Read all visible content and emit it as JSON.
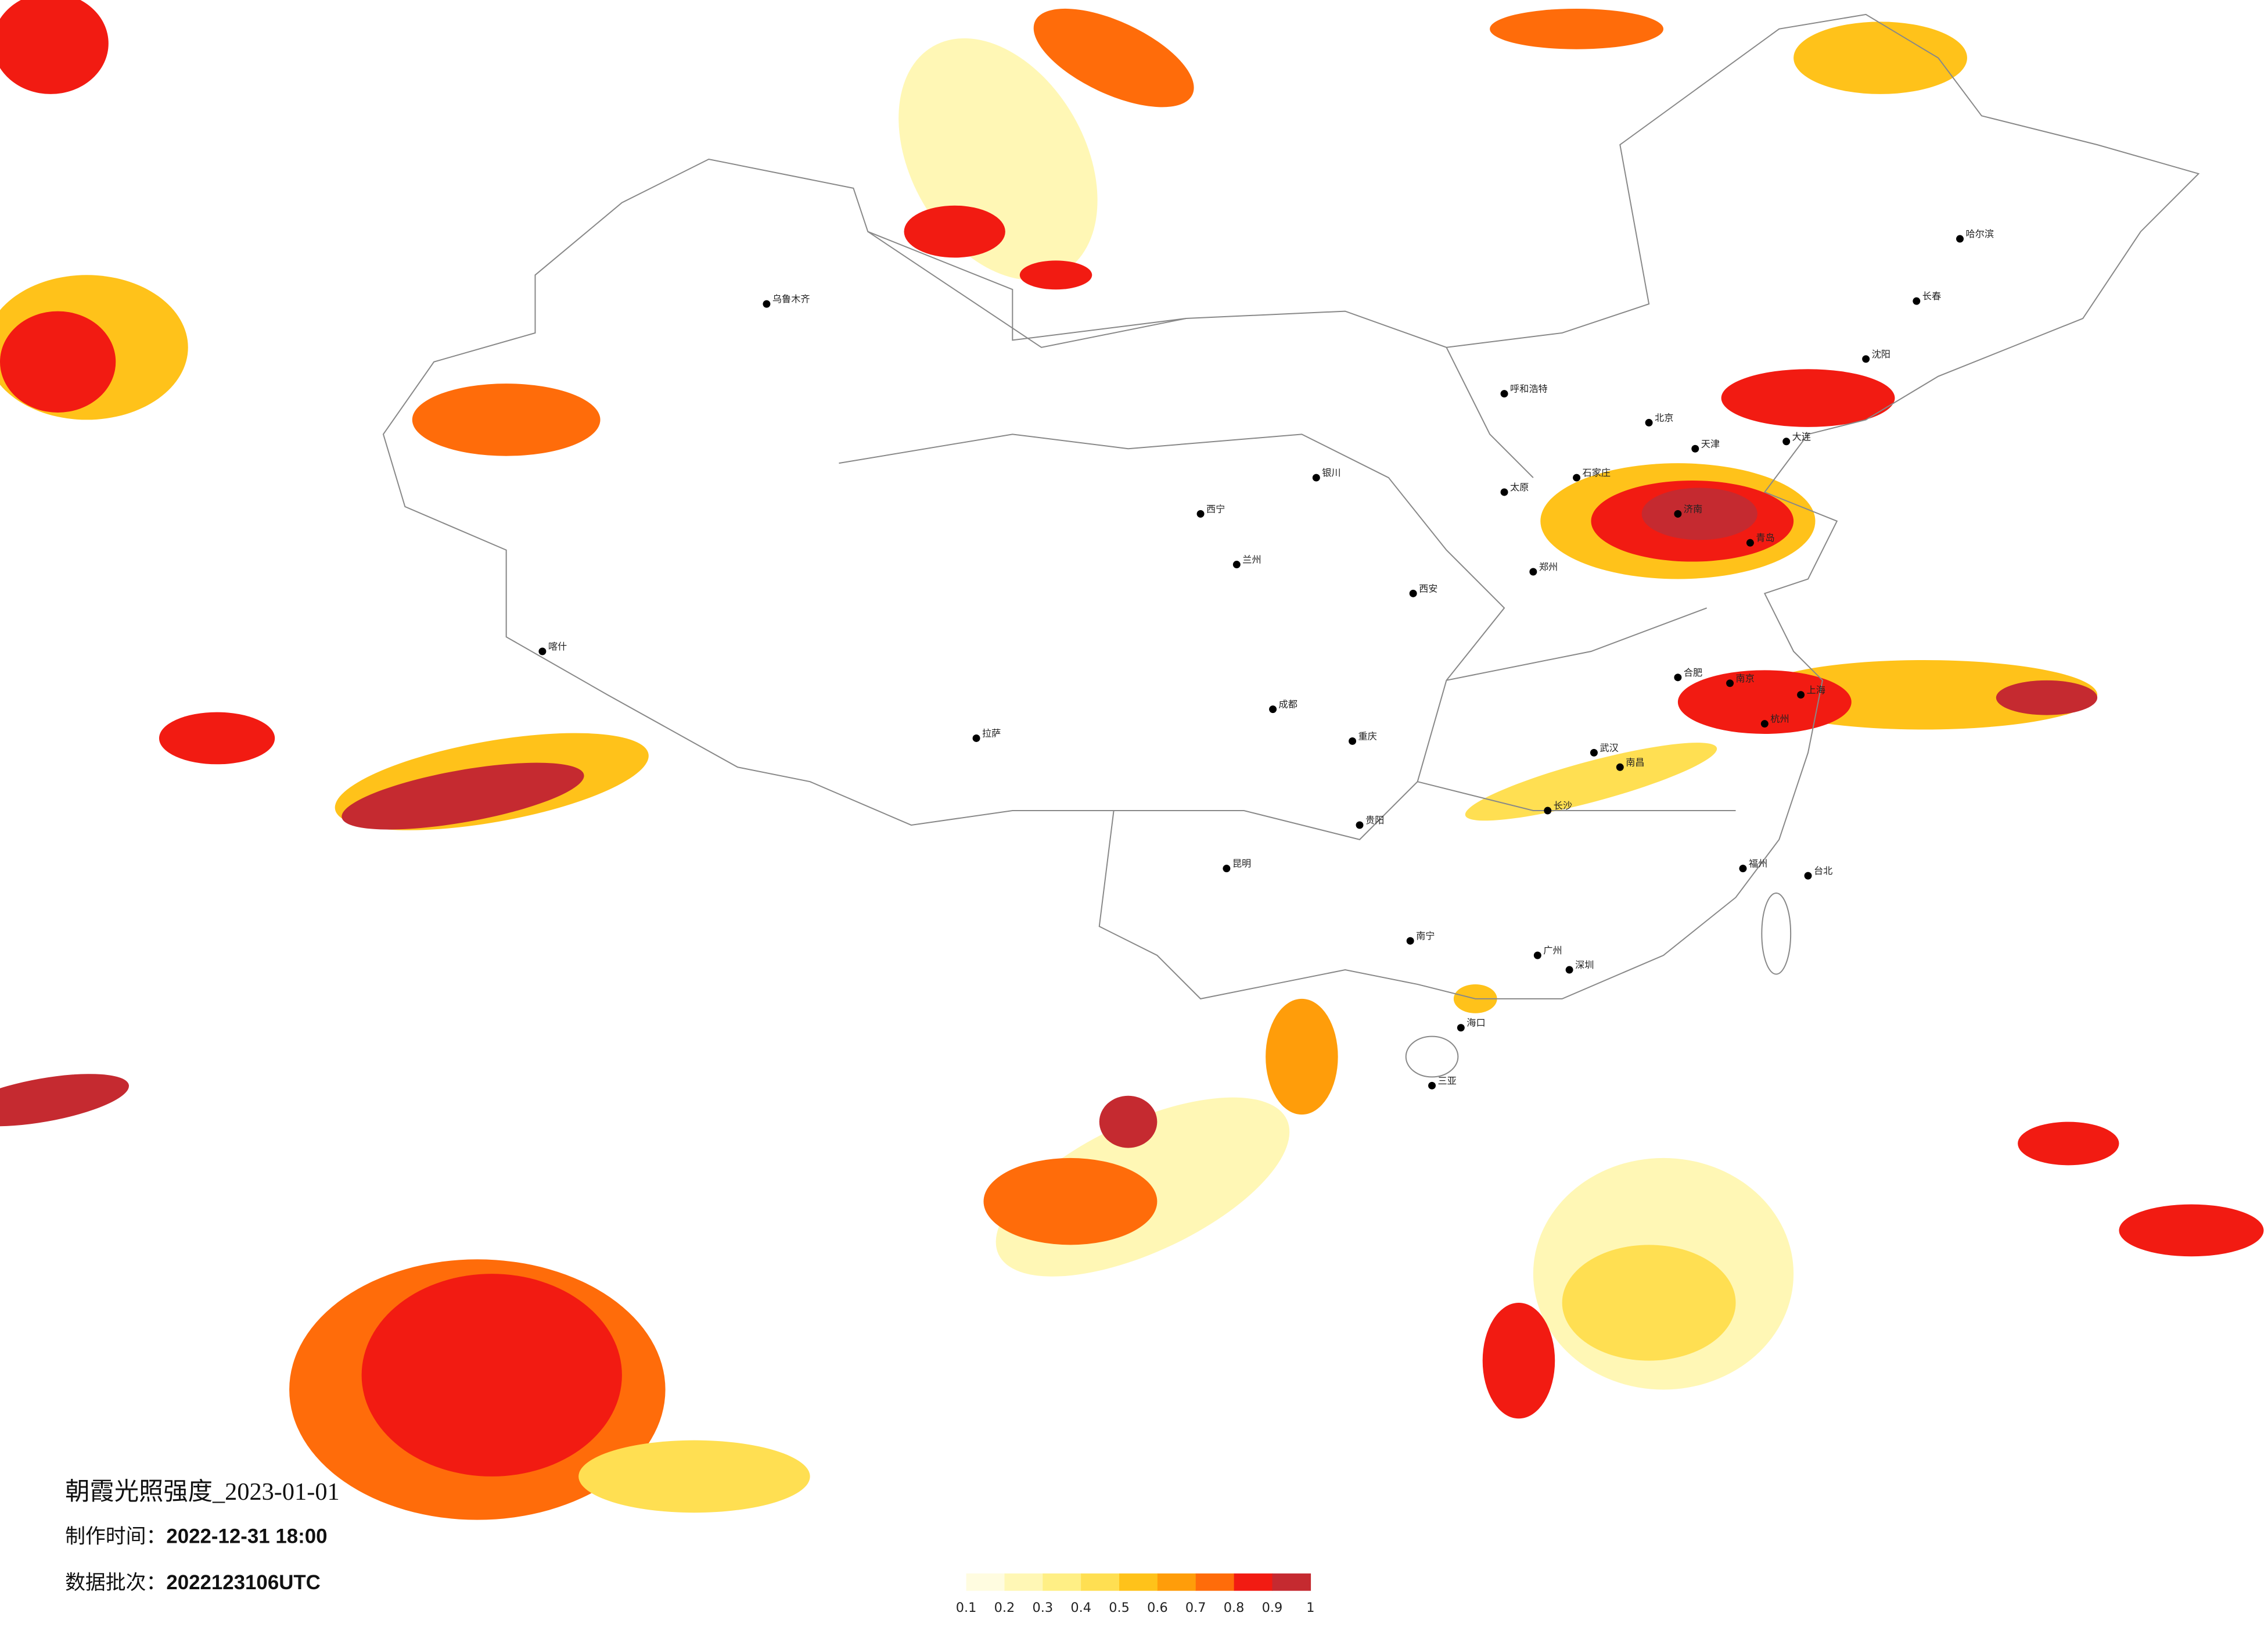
{
  "title": "朝霞光照强度_2023-01-01",
  "produced": {
    "label": "制作时间：",
    "value": "2022-12-31 18:00"
  },
  "batch": {
    "label": "数据批次：",
    "value": "2022123106UTC"
  },
  "legend": {
    "colors": [
      "#fffce0",
      "#fff7b5",
      "#ffef85",
      "#ffdf52",
      "#ffc21a",
      "#ff9d0a",
      "#ff6c0a",
      "#f21b12",
      "#c52a30"
    ],
    "ticks": [
      0.1,
      0.2,
      0.3,
      0.4,
      0.5,
      0.6,
      0.7,
      0.8,
      0.9,
      1
    ]
  },
  "cities": [
    "北京",
    "天津",
    "上海",
    "南京",
    "杭州",
    "武汉",
    "长沙",
    "广州",
    "深圳",
    "重庆",
    "成都",
    "西安",
    "兰州",
    "西宁",
    "银川",
    "呼和浩特",
    "哈尔滨",
    "长春",
    "沈阳",
    "乌鲁木齐",
    "拉萨",
    "昆明",
    "贵阳",
    "南宁",
    "海口",
    "福州",
    "台北",
    "郑州",
    "济南",
    "石家庄",
    "太原",
    "合肥",
    "南昌",
    "喀什",
    "三亚",
    "大连",
    "青岛"
  ]
}
